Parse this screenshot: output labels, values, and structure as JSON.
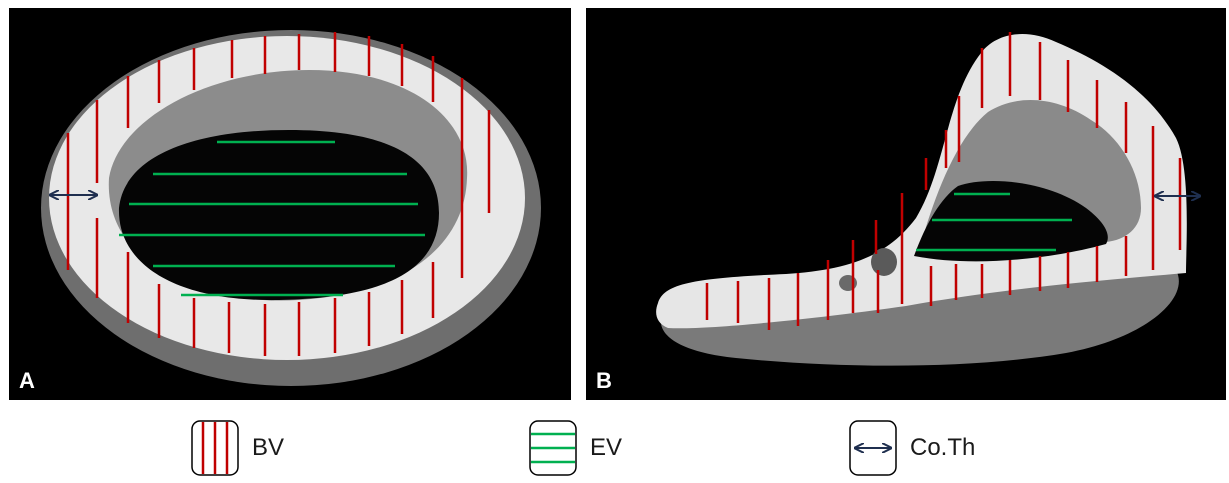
{
  "panels": [
    {
      "letter": "A"
    },
    {
      "letter": "B"
    }
  ],
  "legend": [
    {
      "label": "BV",
      "icon": "vertical-red-lines-icon",
      "color": "#c00000"
    },
    {
      "label": "EV",
      "icon": "horizontal-green-lines-icon",
      "color": "#00b050"
    },
    {
      "label": "Co.Th",
      "icon": "double-arrow-icon",
      "color": "#1f2f4f"
    }
  ],
  "colors": {
    "bone_volume_lines": "#c00000",
    "endocortical_volume_lines": "#00b050",
    "cortical_thickness_arrow": "#1f2f4f",
    "bone": "#e6e6e6",
    "inner_surface": "#8a8a8a",
    "background": "#000000"
  }
}
